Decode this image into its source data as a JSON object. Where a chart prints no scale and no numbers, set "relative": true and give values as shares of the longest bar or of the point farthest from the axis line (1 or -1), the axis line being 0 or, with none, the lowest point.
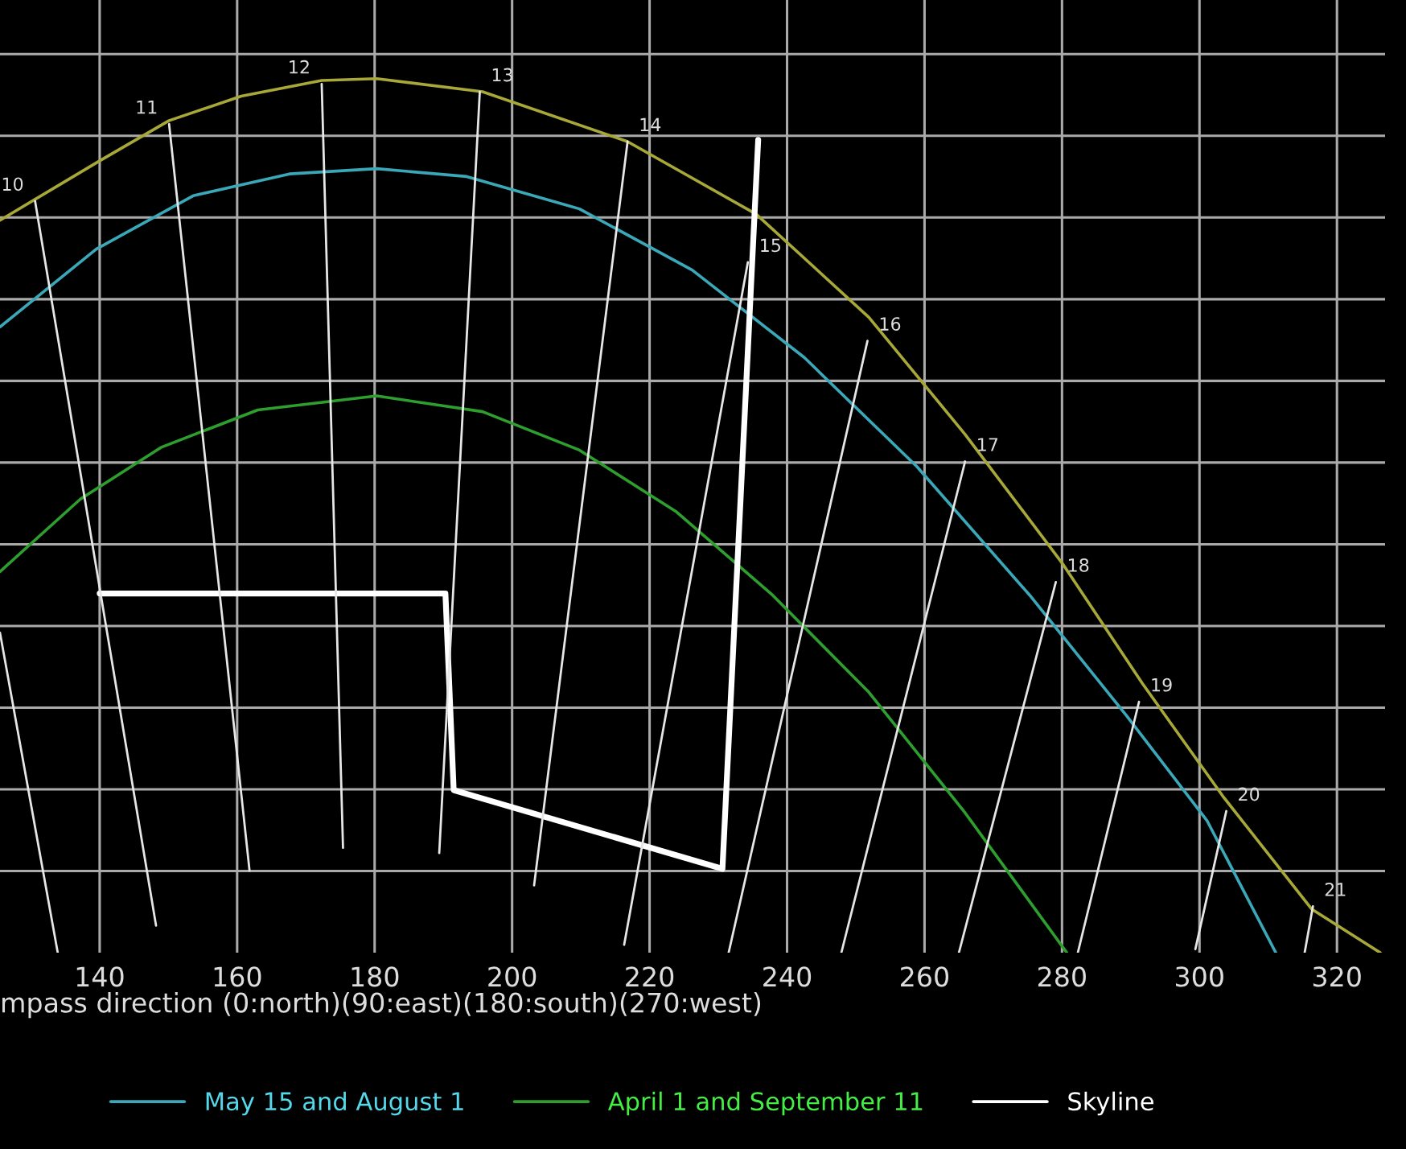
{
  "chart_data": {
    "type": "line",
    "relative": true,
    "xlabel": "mpass direction (0:north)(90:east)(180:south)(270:west)",
    "xlim": [
      125.5,
      327
    ],
    "xticks": [
      140,
      160,
      180,
      200,
      220,
      240,
      260,
      280,
      300,
      320
    ],
    "grid": true,
    "legend": "bottom",
    "marker": "none",
    "line_style": "solid",
    "series": [
      {
        "color": "#a8a838",
        "x": [
          125.5,
          140,
          150.1,
          160.6,
          172.3,
          180.3,
          195.7,
          216.8,
          235.5,
          251.9,
          265.9,
          280.0,
          291.7,
          303.4,
          316.3,
          326.3
        ],
        "values": [
          0.838,
          0.906,
          0.952,
          0.98,
          0.998,
          1,
          0.985,
          0.928,
          0.845,
          0.727,
          0.593,
          0.446,
          0.308,
          0.179,
          0.05,
          0
        ]
      },
      {
        "name": "May 15 and August 1",
        "color": "#3aa8b8",
        "x": [
          125.5,
          139.5,
          153.6,
          167.6,
          180.3,
          193.4,
          209.8,
          226.2,
          242.5,
          258.9,
          275.3,
          289.4,
          301.1,
          311.1
        ],
        "values": [
          0.716,
          0.805,
          0.866,
          0.891,
          0.897,
          0.888,
          0.851,
          0.781,
          0.681,
          0.556,
          0.409,
          0.271,
          0.151,
          0
        ]
      },
      {
        "name": "April 1 and September 11",
        "color": "#2e9e2e",
        "x": [
          125.5,
          137.2,
          148.9,
          163.0,
          180.3,
          195.7,
          209.8,
          223.8,
          237.9,
          251.9,
          265.9,
          280.7
        ],
        "values": [
          0.436,
          0.519,
          0.578,
          0.621,
          0.637,
          0.619,
          0.575,
          0.505,
          0.409,
          0.298,
          0.16,
          0
        ]
      },
      {
        "name": "Skyline",
        "color": "#ffffff",
        "x": [
          140,
          190.3,
          191.5,
          230.6,
          235.8
        ],
        "values": [
          0.411,
          0.411,
          0.186,
          0.096,
          0.93
        ]
      },
      {
        "color": "#e6e6e6",
        "x": [
          125.5,
          133.9
        ],
        "values": [
          0.366,
          0
        ]
      },
      {
        "color": "#e6e6e6",
        "x": [
          130.6,
          148.2
        ],
        "values": [
          0.86,
          0.031
        ]
      },
      {
        "color": "#e6e6e6",
        "x": [
          150.1,
          161.8
        ],
        "values": [
          0.948,
          0.094
        ]
      },
      {
        "color": "#e6e6e6",
        "x": [
          172.3,
          175.4
        ],
        "values": [
          0.994,
          0.12
        ]
      },
      {
        "color": "#e6e6e6",
        "x": [
          195.3,
          189.4
        ],
        "values": [
          0.985,
          0.114
        ]
      },
      {
        "color": "#e6e6e6",
        "x": [
          216.8,
          203.2
        ],
        "values": [
          0.928,
          0.077
        ]
      },
      {
        "color": "#e6e6e6",
        "x": [
          234.3,
          216.3
        ],
        "values": [
          0.79,
          0.009
        ]
      },
      {
        "color": "#e6e6e6",
        "x": [
          251.7,
          231.5
        ],
        "values": [
          0.7,
          0
        ]
      },
      {
        "color": "#e6e6e6",
        "x": [
          265.9,
          247.9
        ],
        "values": [
          0.562,
          0
        ]
      },
      {
        "color": "#e6e6e6",
        "x": [
          279.1,
          265.0
        ],
        "values": [
          0.424,
          0
        ]
      },
      {
        "color": "#e6e6e6",
        "x": [
          291.2,
          282.3
        ],
        "values": [
          0.287,
          0
        ]
      },
      {
        "color": "#e6e6e6",
        "x": [
          303.9,
          299.4
        ],
        "values": [
          0.162,
          0.004
        ]
      },
      {
        "color": "#e6e6e6",
        "x": [
          316.5,
          315.3
        ],
        "values": [
          0.053,
          0
        ]
      }
    ],
    "annotations": [
      {
        "text": "10",
        "x": 130.6,
        "y": 0.86
      },
      {
        "text": "11",
        "x": 150.1,
        "y": 0.948
      },
      {
        "text": "12",
        "x": 172.3,
        "y": 0.994
      },
      {
        "text": "13",
        "x": 195.3,
        "y": 0.985
      },
      {
        "text": "14",
        "x": 216.8,
        "y": 0.928
      },
      {
        "text": "15",
        "x": 234.3,
        "y": 0.79
      },
      {
        "text": "16",
        "x": 251.7,
        "y": 0.7
      },
      {
        "text": "17",
        "x": 265.9,
        "y": 0.562
      },
      {
        "text": "18",
        "x": 279.1,
        "y": 0.424
      },
      {
        "text": "19",
        "x": 291.2,
        "y": 0.287
      },
      {
        "text": "20",
        "x": 303.9,
        "y": 0.162
      },
      {
        "text": "21",
        "x": 316.5,
        "y": 0.053
      }
    ]
  }
}
